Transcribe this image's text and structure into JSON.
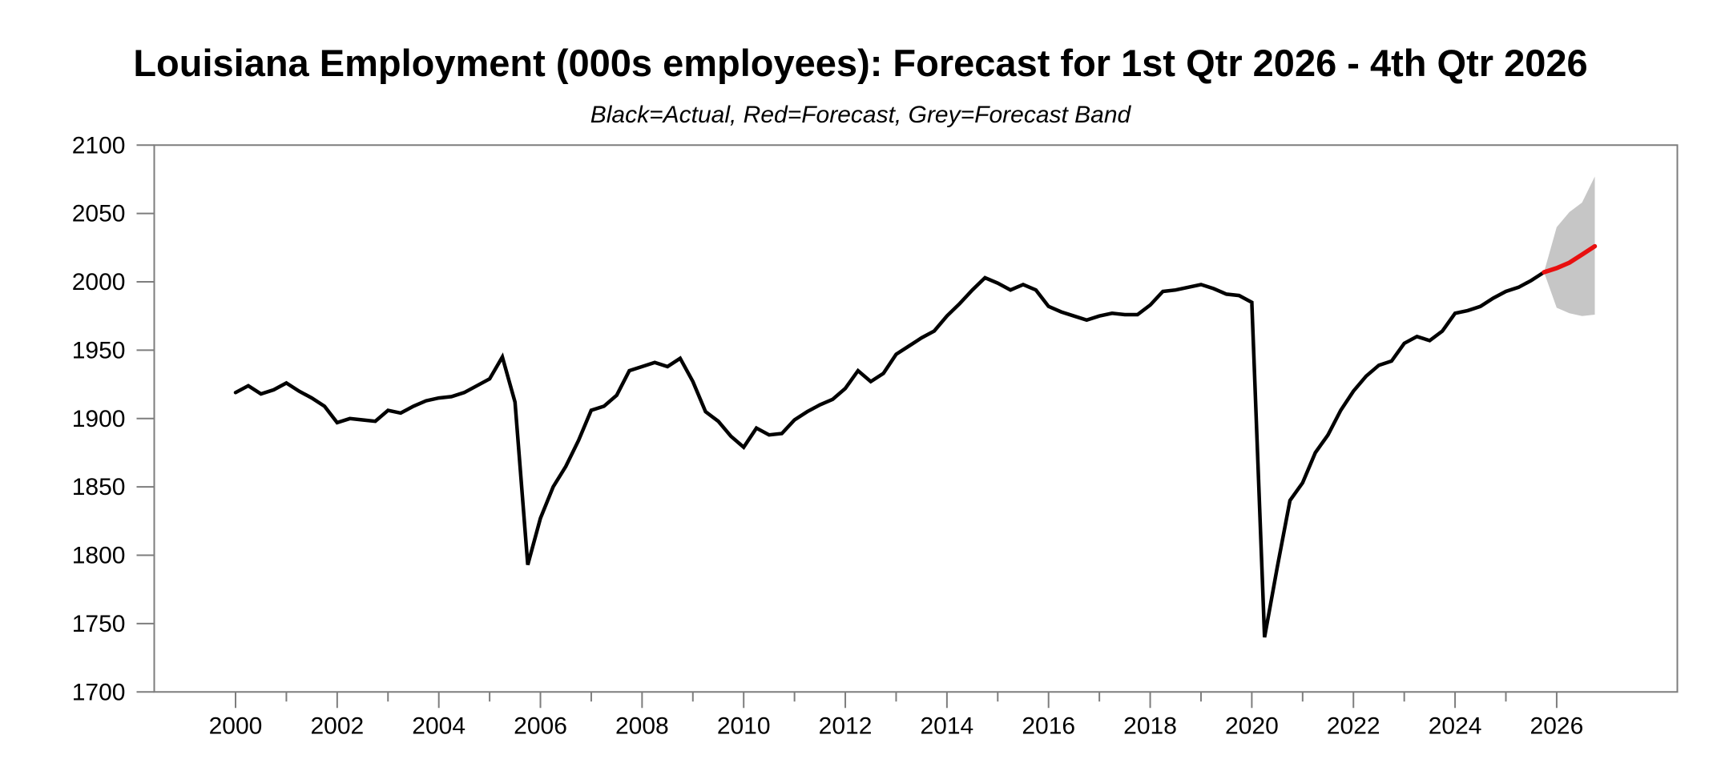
{
  "header": {
    "title": "Louisiana Employment (000s employees): Forecast for 1st Qtr 2026 - 4th Qtr 2026",
    "subtitle": "Black=Actual, Red=Forecast, Grey=Forecast Band"
  },
  "chart_data": {
    "type": "line",
    "title": "Louisiana Employment (000s employees): Forecast for 1st Qtr 2026 - 4th Qtr 2026",
    "subtitle": "Black=Actual, Red=Forecast, Grey=Forecast Band",
    "legend": {
      "black": "Actual",
      "red": "Forecast",
      "grey": "Forecast Band"
    },
    "x_axis": {
      "unit": "year",
      "first_tick": 2000,
      "last_tick": 2026,
      "tick_step": 1,
      "label_step": 2,
      "xlim": [
        1998.4,
        2028.4
      ],
      "labels": [
        "2000",
        "2002",
        "2004",
        "2006",
        "2008",
        "2010",
        "2012",
        "2014",
        "2016",
        "2018",
        "2020",
        "2022",
        "2024",
        "2026"
      ]
    },
    "y_axis": {
      "min": 1700,
      "max": 2100,
      "tick_step": 50,
      "labels": [
        "1700",
        "1750",
        "1800",
        "1850",
        "1900",
        "1950",
        "2000",
        "2050",
        "2100"
      ]
    },
    "grid": false,
    "colors": {
      "actual": "#000000",
      "forecast": "#e81010",
      "band": "#c6c6c6",
      "axis": "#7d7d7d"
    },
    "series": [
      {
        "name": "Actual",
        "frequency": "quarterly",
        "start_period": "2000Q1",
        "end_period": "2025Q4",
        "values": [
          1919,
          1924,
          1918,
          1921,
          1926,
          1920,
          1915,
          1909,
          1897,
          1900,
          1899,
          1898,
          1906,
          1904,
          1909,
          1913,
          1915,
          1916,
          1919,
          1924,
          1929,
          1945,
          1912,
          1793,
          1827,
          1850,
          1865,
          1884,
          1906,
          1909,
          1917,
          1935,
          1938,
          1941,
          1938,
          1944,
          1927,
          1905,
          1898,
          1887,
          1879,
          1893,
          1888,
          1889,
          1899,
          1905,
          1910,
          1914,
          1922,
          1935,
          1927,
          1933,
          1947,
          1953,
          1959,
          1964,
          1975,
          1984,
          1994,
          2003,
          1999,
          1994,
          1998,
          1994,
          1982,
          1978,
          1975,
          1972,
          1975,
          1977,
          1976,
          1976,
          1983,
          1993,
          1994,
          1996,
          1998,
          1995,
          1991,
          1990,
          1985,
          1740,
          1791,
          1840,
          1853,
          1875,
          1888,
          1906,
          1920,
          1931,
          1939,
          1942,
          1955,
          1960,
          1957,
          1964,
          1977,
          1979,
          1982,
          1988,
          1993,
          1996,
          2001,
          2007
        ]
      },
      {
        "name": "Forecast",
        "frequency": "quarterly",
        "start_period": "2026Q1",
        "end_period": "2026Q4",
        "values": [
          2010,
          2014,
          2020,
          2026
        ]
      },
      {
        "name": "Forecast Band Upper",
        "frequency": "quarterly",
        "start_period": "2026Q1",
        "end_period": "2026Q4",
        "values": [
          2040,
          2051,
          2058,
          2077
        ]
      },
      {
        "name": "Forecast Band Lower",
        "frequency": "quarterly",
        "start_period": "2026Q1",
        "end_period": "2026Q4",
        "values": [
          1981,
          1977,
          1975,
          1976
        ]
      }
    ]
  }
}
